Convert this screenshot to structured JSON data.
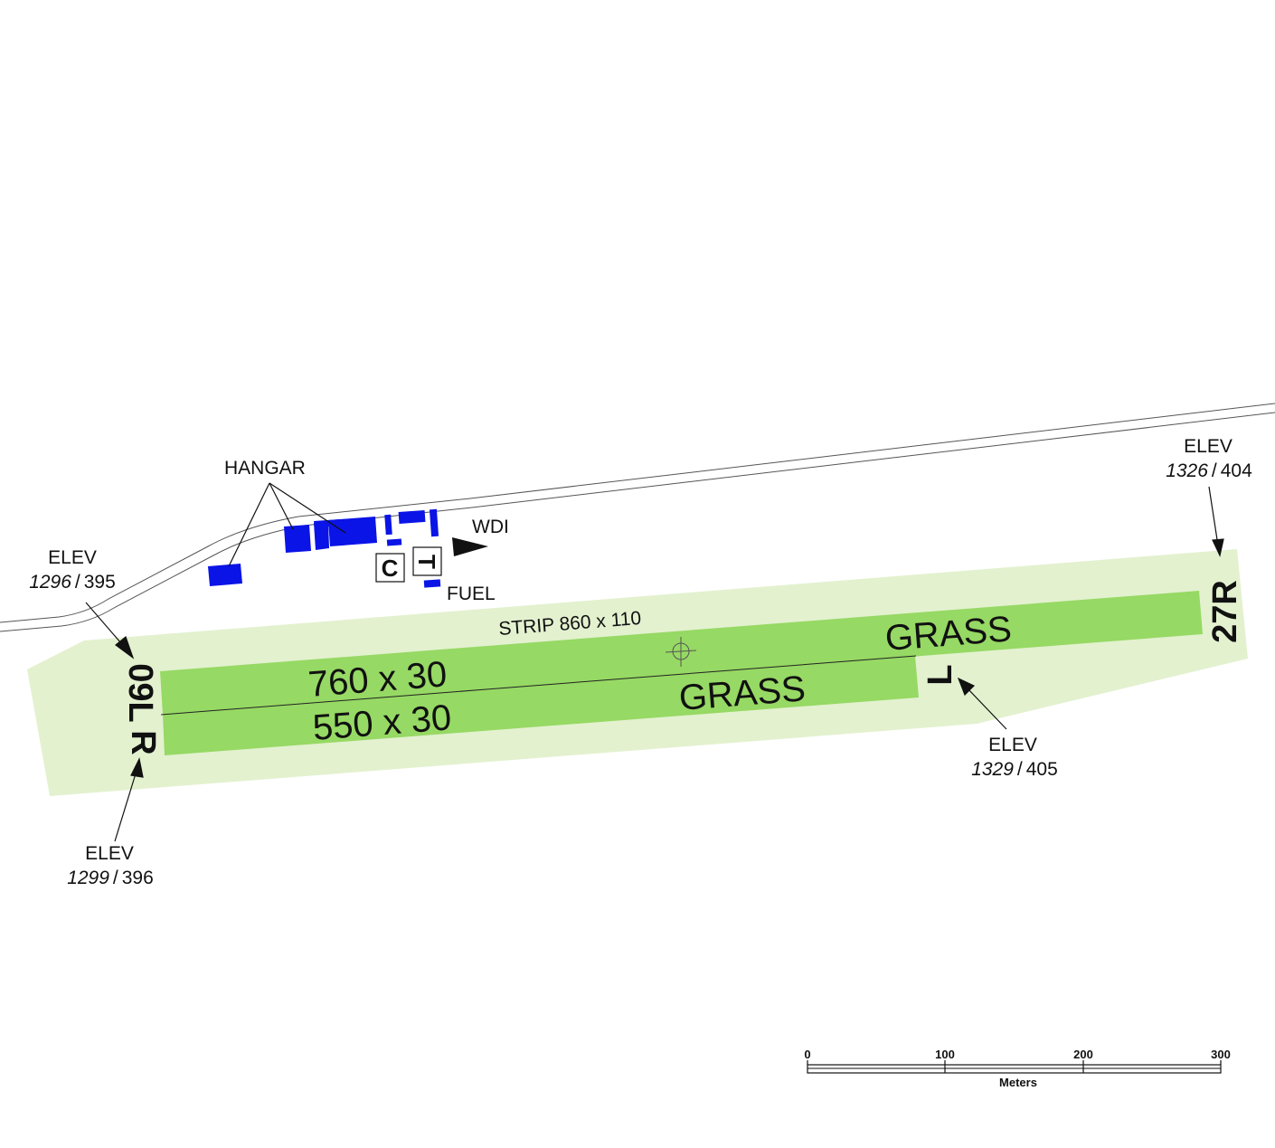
{
  "labels": {
    "hangar": "HANGAR",
    "wdi": "WDI",
    "fuel": "FUEL",
    "strip": "STRIP 860 x 110",
    "grass": "GRASS",
    "runway_left_size": "760 x 30",
    "runway_right_size": "550 x 30",
    "box_c": "C",
    "box_t": "T"
  },
  "runways": {
    "end_09l": "09L",
    "end_09r": "R",
    "end_27r": "27R",
    "end_27l": "L"
  },
  "elevations": [
    {
      "label": "ELEV",
      "feet": "1296",
      "separator": "/",
      "meters": "395"
    },
    {
      "label": "ELEV",
      "feet": "1299",
      "separator": "/",
      "meters": "396"
    },
    {
      "label": "ELEV",
      "feet": "1326",
      "separator": "/",
      "meters": "404"
    },
    {
      "label": "ELEV",
      "feet": "1329",
      "separator": "/",
      "meters": "405"
    }
  ],
  "scale_bar": {
    "ticks": [
      "0",
      "100",
      "200",
      "300"
    ],
    "unit": "Meters"
  },
  "colors": {
    "strip": "#e3f1cf",
    "runway": "#96d964",
    "building": "#0a14e6",
    "ink": "#111111"
  }
}
